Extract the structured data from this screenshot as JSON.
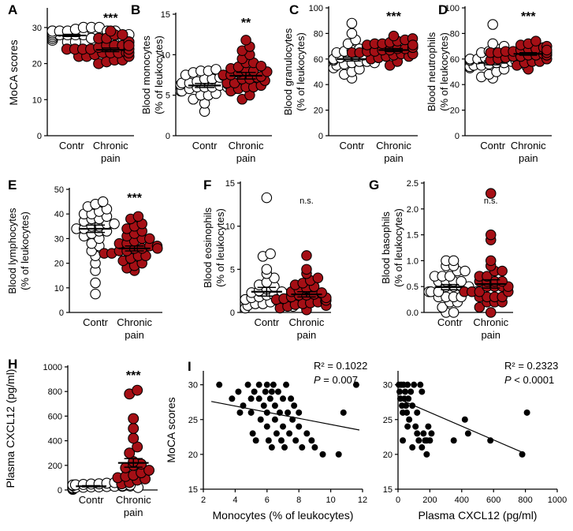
{
  "colors": {
    "control": "#ffffff",
    "pain": "#a50f15",
    "edge": "#000000",
    "scatter": "#000000"
  },
  "chart_data": [
    {
      "panel": "A",
      "type": "scatter",
      "ylabel": "MoCA scores",
      "ylim": [
        0,
        35
      ],
      "yticks": [
        0,
        10,
        20,
        30
      ],
      "categories": [
        "Contr",
        "Chronic pain"
      ],
      "sig": "***",
      "series": [
        {
          "group": "Contr",
          "mean": 27.8,
          "sem": 0.3,
          "values": [
            26,
            26.5,
            27,
            27,
            27.5,
            27.5,
            28,
            28,
            28,
            28,
            28,
            28.5,
            28.5,
            29,
            29,
            29,
            29,
            29.5,
            30,
            30,
            30,
            27,
            26,
            27,
            28,
            29,
            28,
            27,
            28,
            29
          ]
        },
        {
          "group": "Chronic pain",
          "mean": 23.8,
          "sem": 0.5,
          "values": [
            20,
            20.5,
            21,
            21,
            22,
            22,
            22.5,
            23,
            23,
            23,
            23,
            24,
            24,
            24,
            24,
            24.5,
            25,
            25,
            25,
            26,
            26,
            27,
            27,
            28,
            28,
            29,
            22,
            23,
            24,
            25
          ]
        }
      ]
    },
    {
      "panel": "B",
      "type": "scatter",
      "ylabel": "Blood monocytes (% of leukocytes)",
      "ylim": [
        0,
        15
      ],
      "yticks": [
        0,
        5,
        10,
        15
      ],
      "categories": [
        "Contr",
        "Chronic pain"
      ],
      "sig": "**",
      "series": [
        {
          "group": "Contr",
          "mean": 6.2,
          "sem": 0.25,
          "values": [
            3,
            4,
            4.5,
            5,
            5,
            5.2,
            5.5,
            5.5,
            5.8,
            6,
            6,
            6,
            6.2,
            6.3,
            6.5,
            6.5,
            6.7,
            7,
            7,
            7.2,
            7.5,
            7.8,
            8,
            8,
            8.2,
            6,
            5.8,
            6.4,
            6.8,
            7.4
          ]
        },
        {
          "group": "Chronic pain",
          "mean": 7.4,
          "sem": 0.4,
          "values": [
            4.5,
            5,
            5.5,
            5.8,
            6,
            6,
            6.5,
            6.5,
            7,
            7,
            7.2,
            7.5,
            7.5,
            7.8,
            8,
            8,
            8.3,
            8.5,
            9,
            9,
            9.5,
            10,
            10.5,
            11,
            11.8,
            6.8,
            7.3,
            7.9,
            8.6,
            6.2
          ]
        }
      ]
    },
    {
      "panel": "C",
      "type": "scatter",
      "ylabel": "Blood granulocytes (% of leukocytes)",
      "ylim": [
        0,
        100
      ],
      "yticks": [
        0,
        20,
        40,
        60,
        80,
        100
      ],
      "categories": [
        "Contr",
        "Chronic pain"
      ],
      "sig": "***",
      "series": [
        {
          "group": "Contr",
          "mean": 60,
          "sem": 1.5,
          "values": [
            45,
            48,
            50,
            52,
            53,
            55,
            56,
            57,
            58,
            58,
            59,
            60,
            60,
            61,
            62,
            62,
            63,
            64,
            65,
            66,
            67,
            68,
            70,
            72,
            75,
            80,
            88,
            57,
            61,
            64
          ]
        },
        {
          "group": "Chronic pain",
          "mean": 67,
          "sem": 1.2,
          "values": [
            55,
            58,
            60,
            61,
            62,
            63,
            64,
            65,
            65,
            66,
            66,
            67,
            67,
            68,
            68,
            69,
            70,
            70,
            71,
            72,
            72,
            73,
            74,
            75,
            76,
            78,
            62,
            64,
            69,
            71
          ]
        }
      ]
    },
    {
      "panel": "D",
      "type": "scatter",
      "ylabel": "Blood neutrophils (% of leukocytes)",
      "ylim": [
        0,
        100
      ],
      "yticks": [
        0,
        20,
        40,
        60,
        80,
        100
      ],
      "categories": [
        "Contr",
        "Chronic pain"
      ],
      "sig": "***",
      "series": [
        {
          "group": "Contr",
          "mean": 57,
          "sem": 1.5,
          "values": [
            45,
            46,
            48,
            50,
            52,
            53,
            54,
            55,
            55,
            56,
            57,
            57,
            58,
            58,
            59,
            60,
            60,
            61,
            62,
            63,
            64,
            65,
            66,
            68,
            70,
            72,
            87,
            54,
            59,
            62
          ]
        },
        {
          "group": "Chronic pain",
          "mean": 64,
          "sem": 1.0,
          "values": [
            52,
            55,
            57,
            58,
            59,
            60,
            61,
            62,
            62,
            63,
            63,
            64,
            64,
            65,
            65,
            66,
            66,
            67,
            68,
            68,
            69,
            70,
            71,
            72,
            74,
            60,
            63,
            65,
            67,
            58
          ]
        }
      ]
    },
    {
      "panel": "E",
      "type": "scatter",
      "ylabel": "Blood lymphocytes (% of leukocytes)",
      "ylim": [
        0,
        50
      ],
      "yticks": [
        0,
        10,
        20,
        30,
        40,
        50
      ],
      "categories": [
        "Contr",
        "Chronic pain"
      ],
      "sig": "***",
      "series": [
        {
          "group": "Contr",
          "mean": 34,
          "sem": 1.5,
          "values": [
            7.5,
            12,
            17,
            20,
            23,
            25,
            27,
            28,
            30,
            31,
            32,
            33,
            34,
            34,
            35,
            35,
            36,
            37,
            38,
            38,
            39,
            40,
            40,
            41,
            42,
            43,
            44,
            45,
            36,
            33
          ]
        },
        {
          "group": "Chronic pain",
          "mean": 26,
          "sem": 1.0,
          "values": [
            17,
            18,
            19,
            20,
            21,
            22,
            23,
            23,
            24,
            24,
            25,
            25,
            26,
            26,
            27,
            27,
            28,
            28,
            29,
            30,
            30,
            31,
            32,
            33,
            34,
            35,
            36,
            38,
            39,
            26
          ]
        }
      ]
    },
    {
      "panel": "F",
      "type": "scatter",
      "ylabel": "Blood eosinophils (% of leukocytes)",
      "ylim": [
        0,
        15
      ],
      "yticks": [
        0,
        5,
        10,
        15
      ],
      "categories": [
        "Contr",
        "Chronic pain"
      ],
      "sig": "n.s.",
      "series": [
        {
          "group": "Contr",
          "mean": 2.4,
          "sem": 0.5,
          "values": [
            0.5,
            0.8,
            1,
            1,
            1.2,
            1.3,
            1.5,
            1.5,
            1.7,
            1.8,
            2,
            2,
            2.1,
            2.2,
            2.3,
            2.5,
            2.7,
            3,
            3.2,
            3.5,
            4,
            4.5,
            5,
            6.5,
            6.8,
            13.3,
            1.9,
            2.4,
            1.1,
            0.7
          ]
        },
        {
          "group": "Chronic pain",
          "mean": 2.1,
          "sem": 0.3,
          "values": [
            0.3,
            0.5,
            0.7,
            0.9,
            1,
            1.1,
            1.2,
            1.3,
            1.5,
            1.6,
            1.8,
            2,
            2,
            2.1,
            2.2,
            2.4,
            2.6,
            2.8,
            3,
            3.2,
            3.4,
            3.7,
            4,
            4.5,
            5,
            6.6,
            1.4,
            2.3,
            1.7,
            0.8
          ]
        }
      ]
    },
    {
      "panel": "G",
      "type": "scatter",
      "ylabel": "Blood basophils (% of leukocytes)",
      "ylim": [
        0,
        2.5
      ],
      "yticks": [
        0.0,
        0.5,
        1.0,
        1.5,
        2.0,
        2.5
      ],
      "categories": [
        "Contr",
        "Chronic pain"
      ],
      "sig": "n.s.",
      "series": [
        {
          "group": "Contr",
          "mean": 0.49,
          "sem": 0.05,
          "values": [
            0,
            0,
            0.1,
            0.2,
            0.2,
            0.3,
            0.3,
            0.3,
            0.4,
            0.4,
            0.4,
            0.5,
            0.5,
            0.5,
            0.5,
            0.6,
            0.6,
            0.6,
            0.7,
            0.7,
            0.7,
            0.8,
            0.8,
            0.9,
            0.9,
            1.0,
            1.0,
            0.4,
            0.6,
            0.3
          ]
        },
        {
          "group": "Chronic pain",
          "mean": 0.55,
          "sem": 0.08,
          "values": [
            0,
            0.1,
            0.2,
            0.2,
            0.3,
            0.3,
            0.3,
            0.4,
            0.4,
            0.4,
            0.5,
            0.5,
            0.5,
            0.6,
            0.6,
            0.6,
            0.7,
            0.7,
            0.8,
            0.8,
            0.9,
            1.0,
            1.4,
            1.5,
            2.3,
            0.4,
            0.5,
            0.6,
            0.3,
            0.2
          ]
        }
      ]
    },
    {
      "panel": "H",
      "type": "scatter",
      "ylabel": "Plasma CXCL12 (pg/ml)",
      "ylim": [
        0,
        1000
      ],
      "yticks": [
        0,
        200,
        400,
        600,
        800,
        1000
      ],
      "categories": [
        "Contr",
        "Chronic pain"
      ],
      "sig": "***",
      "series": [
        {
          "group": "Contr",
          "mean": 30,
          "sem": 5,
          "values": [
            5,
            10,
            15,
            18,
            20,
            22,
            25,
            25,
            28,
            30,
            30,
            32,
            35,
            38,
            40,
            42,
            45,
            48,
            50,
            55,
            60,
            20,
            35,
            40
          ]
        },
        {
          "group": "Chronic pain",
          "mean": 220,
          "sem": 35,
          "values": [
            50,
            60,
            80,
            90,
            100,
            110,
            120,
            140,
            160,
            180,
            200,
            210,
            230,
            300,
            350,
            420,
            500,
            580,
            780,
            810
          ]
        }
      ]
    },
    {
      "panel": "I",
      "type": "scatter",
      "ylabel": "MoCA scores",
      "xlabel": "Monocytes (% of leukocytes)",
      "xlim": [
        2,
        12
      ],
      "ylim": [
        15,
        32
      ],
      "xticks": [
        2,
        4,
        6,
        8,
        10,
        12
      ],
      "yticks": [
        15,
        20,
        25,
        30
      ],
      "r2": "R² = 0.1022",
      "p": "P = 0.007",
      "fit": [
        [
          2.5,
          27.6
        ],
        [
          11.8,
          23.5
        ]
      ],
      "points": [
        [
          3,
          30
        ],
        [
          3.8,
          28
        ],
        [
          4.2,
          29
        ],
        [
          4.5,
          27
        ],
        [
          4.8,
          30
        ],
        [
          5,
          28
        ],
        [
          5,
          26
        ],
        [
          5.2,
          29
        ],
        [
          5.3,
          22
        ],
        [
          5.5,
          30
        ],
        [
          5.5,
          28
        ],
        [
          5.6,
          25
        ],
        [
          5.8,
          27
        ],
        [
          5.9,
          29
        ],
        [
          6,
          30
        ],
        [
          6,
          26
        ],
        [
          6,
          24
        ],
        [
          6.1,
          22
        ],
        [
          6.2,
          28
        ],
        [
          6.3,
          21
        ],
        [
          6.4,
          30
        ],
        [
          6.5,
          27
        ],
        [
          6.5,
          25
        ],
        [
          6.6,
          23
        ],
        [
          6.7,
          29
        ],
        [
          6.8,
          26
        ],
        [
          6.9,
          22
        ],
        [
          7,
          28
        ],
        [
          7,
          24
        ],
        [
          7.1,
          21
        ],
        [
          7.2,
          30
        ],
        [
          7.3,
          26
        ],
        [
          7.4,
          23
        ],
        [
          7.5,
          28
        ],
        [
          7.6,
          25
        ],
        [
          7.8,
          22
        ],
        [
          8,
          26
        ],
        [
          8,
          24
        ],
        [
          8.2,
          21
        ],
        [
          8.5,
          23
        ],
        [
          8.8,
          22
        ],
        [
          9,
          21
        ],
        [
          9.5,
          20
        ],
        [
          10.5,
          20
        ],
        [
          10.8,
          26
        ],
        [
          11.6,
          30
        ],
        [
          4.3,
          26
        ],
        [
          5.1,
          23
        ],
        [
          6.3,
          29
        ],
        [
          7.7,
          27
        ]
      ]
    },
    {
      "panel": "I",
      "type": "scatter",
      "xlabel": "Plasma CXCL12 (pg/ml)",
      "xlim": [
        0,
        1000
      ],
      "ylim": [
        15,
        32
      ],
      "xticks": [
        0,
        200,
        400,
        600,
        800,
        1000
      ],
      "yticks": [
        15,
        20,
        25,
        30
      ],
      "r2": "R² = 0.2323",
      "p": "P < 0.0001",
      "fit": [
        [
          0,
          28.0
        ],
        [
          780,
          20.3
        ]
      ],
      "points": [
        [
          5,
          30
        ],
        [
          10,
          29
        ],
        [
          15,
          28
        ],
        [
          20,
          30
        ],
        [
          25,
          27
        ],
        [
          30,
          26
        ],
        [
          35,
          30
        ],
        [
          40,
          28
        ],
        [
          45,
          29
        ],
        [
          50,
          27
        ],
        [
          55,
          26
        ],
        [
          60,
          30
        ],
        [
          65,
          28
        ],
        [
          70,
          25
        ],
        [
          80,
          29
        ],
        [
          90,
          27
        ],
        [
          100,
          30
        ],
        [
          110,
          24
        ],
        [
          120,
          23
        ],
        [
          130,
          22
        ],
        [
          140,
          30
        ],
        [
          150,
          21
        ],
        [
          160,
          23
        ],
        [
          170,
          22
        ],
        [
          180,
          20
        ],
        [
          190,
          24
        ],
        [
          200,
          22
        ],
        [
          210,
          23
        ],
        [
          30,
          22
        ],
        [
          60,
          24
        ],
        [
          90,
          21
        ],
        [
          120,
          26
        ],
        [
          150,
          29
        ],
        [
          180,
          22
        ],
        [
          350,
          22
        ],
        [
          420,
          25
        ],
        [
          440,
          23
        ],
        [
          580,
          22
        ],
        [
          780,
          20
        ],
        [
          810,
          26
        ]
      ]
    }
  ],
  "panels": {
    "A": {
      "label": "A",
      "xtick": [
        "Contr",
        "Chronic"
      ],
      "xtick2": "pain"
    },
    "B": {
      "label": "B",
      "xtick": [
        "Contr",
        "Chronic"
      ],
      "xtick2": "pain"
    },
    "C": {
      "label": "C",
      "xtick": [
        "Contr",
        "Chronic"
      ],
      "xtick2": "pain"
    },
    "D": {
      "label": "D",
      "xtick": [
        "Contr",
        "Chronic"
      ],
      "xtick2": "pain"
    },
    "E": {
      "label": "E",
      "xtick": [
        "Contr",
        "Chronic"
      ],
      "xtick2": "pain"
    },
    "F": {
      "label": "F",
      "xtick": [
        "Contr",
        "Chronic"
      ],
      "xtick2": "pain"
    },
    "G": {
      "label": "G",
      "xtick": [
        "Contr",
        "Chronic"
      ],
      "xtick2": "pain"
    },
    "H": {
      "label": "H",
      "xtick": [
        "Contr",
        "Chronic"
      ],
      "xtick2": "pain"
    },
    "I": {
      "label": "I"
    }
  },
  "ylabel_lines": {
    "A": [
      "MoCA scores"
    ],
    "B": [
      "Blood monocytes",
      "(% of leukocytes)"
    ],
    "C": [
      "Blood granulocytes",
      "(% of leukocytes)"
    ],
    "D": [
      "Blood neutrophils",
      "(% of leukocytes)"
    ],
    "E": [
      "Blood lymphocytes",
      "(% of leukocytes)"
    ],
    "F": [
      "Blood eosinophils",
      "(% of leukocytes)"
    ],
    "G": [
      "Blood basophils",
      "(% of leukocytes)"
    ],
    "H": [
      "Plasma CXCL12 (pg/ml)"
    ],
    "I": [
      "MoCA scores"
    ]
  }
}
